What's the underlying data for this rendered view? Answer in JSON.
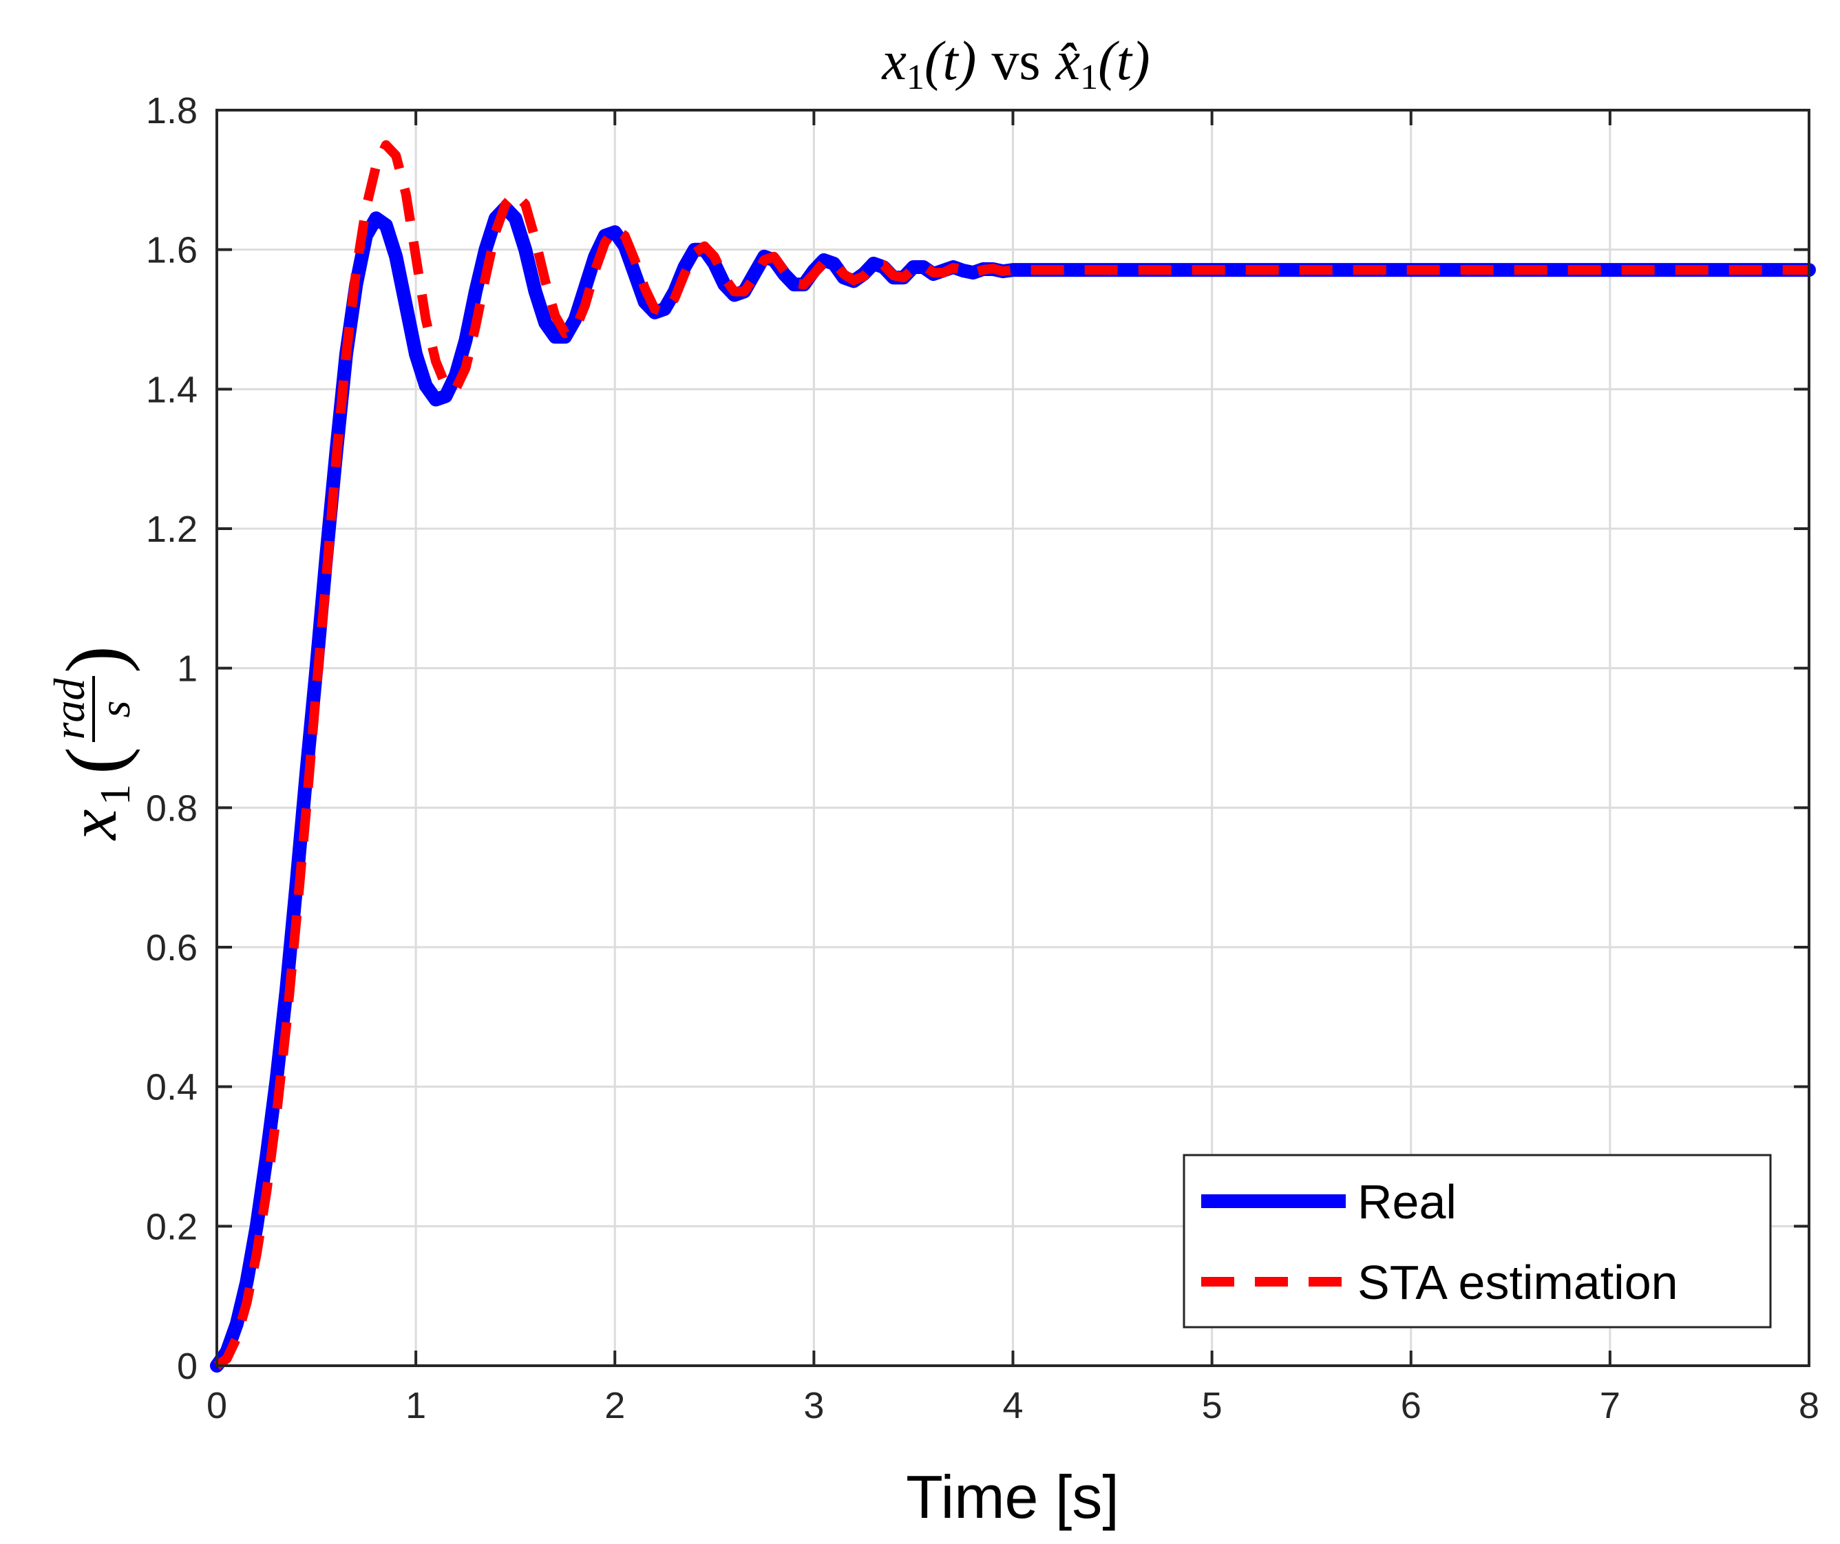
{
  "colors": {
    "real": "#0000ff",
    "estimate": "#ff0000",
    "axis": "#262626",
    "grid": "#dcdcdc"
  },
  "chart_data": {
    "type": "line",
    "title": "x1(t) vs x̂1(t)",
    "title_parts": {
      "a": "x",
      "a_sub": "1",
      "a_arg": "(t)",
      "vs": "vs",
      "b": "x̂",
      "b_sub": "1",
      "b_arg": "(t)"
    },
    "xlabel": "Time [s]",
    "ylabel": "x1(rad/s)",
    "ylabel_parts": {
      "var": "x",
      "sub": "1",
      "num": "rad",
      "den": "s"
    },
    "xlim": [
      0,
      8
    ],
    "ylim": [
      0,
      1.8
    ],
    "xticks": [
      0,
      1,
      2,
      3,
      4,
      5,
      6,
      7,
      8
    ],
    "yticks": [
      0,
      0.2,
      0.4,
      0.6,
      0.8,
      1,
      1.2,
      1.4,
      1.6,
      1.8
    ],
    "xtick_labels": [
      "0",
      "1",
      "2",
      "3",
      "4",
      "5",
      "6",
      "7",
      "8"
    ],
    "ytick_labels": [
      "0",
      "0.2",
      "0.4",
      "0.6",
      "0.8",
      "1",
      "1.2",
      "1.4",
      "1.6",
      "1.8"
    ],
    "grid": true,
    "legend_position": "bottom-right",
    "series": [
      {
        "name": "Real",
        "style": "solid",
        "points": [
          [
            0,
            0
          ],
          [
            0.05,
            0.02
          ],
          [
            0.1,
            0.06
          ],
          [
            0.15,
            0.12
          ],
          [
            0.2,
            0.2
          ],
          [
            0.25,
            0.3
          ],
          [
            0.3,
            0.41
          ],
          [
            0.35,
            0.54
          ],
          [
            0.4,
            0.69
          ],
          [
            0.45,
            0.85
          ],
          [
            0.5,
            1.0
          ],
          [
            0.55,
            1.16
          ],
          [
            0.6,
            1.31
          ],
          [
            0.65,
            1.45
          ],
          [
            0.7,
            1.55
          ],
          [
            0.75,
            1.62
          ],
          [
            0.8,
            1.645
          ],
          [
            0.85,
            1.635
          ],
          [
            0.9,
            1.59
          ],
          [
            0.95,
            1.52
          ],
          [
            1.0,
            1.45
          ],
          [
            1.05,
            1.405
          ],
          [
            1.1,
            1.385
          ],
          [
            1.15,
            1.39
          ],
          [
            1.2,
            1.42
          ],
          [
            1.25,
            1.47
          ],
          [
            1.3,
            1.54
          ],
          [
            1.35,
            1.6
          ],
          [
            1.4,
            1.645
          ],
          [
            1.45,
            1.66
          ],
          [
            1.5,
            1.645
          ],
          [
            1.55,
            1.6
          ],
          [
            1.6,
            1.54
          ],
          [
            1.65,
            1.495
          ],
          [
            1.7,
            1.475
          ],
          [
            1.75,
            1.475
          ],
          [
            1.8,
            1.5
          ],
          [
            1.85,
            1.545
          ],
          [
            1.9,
            1.59
          ],
          [
            1.95,
            1.62
          ],
          [
            2.0,
            1.625
          ],
          [
            2.05,
            1.605
          ],
          [
            2.1,
            1.565
          ],
          [
            2.15,
            1.525
          ],
          [
            2.2,
            1.51
          ],
          [
            2.25,
            1.515
          ],
          [
            2.3,
            1.54
          ],
          [
            2.35,
            1.575
          ],
          [
            2.4,
            1.6
          ],
          [
            2.45,
            1.6
          ],
          [
            2.5,
            1.58
          ],
          [
            2.55,
            1.55
          ],
          [
            2.6,
            1.535
          ],
          [
            2.65,
            1.54
          ],
          [
            2.7,
            1.565
          ],
          [
            2.75,
            1.59
          ],
          [
            2.8,
            1.585
          ],
          [
            2.85,
            1.565
          ],
          [
            2.9,
            1.55
          ],
          [
            2.95,
            1.55
          ],
          [
            3.0,
            1.57
          ],
          [
            3.05,
            1.585
          ],
          [
            3.1,
            1.58
          ],
          [
            3.15,
            1.56
          ],
          [
            3.2,
            1.555
          ],
          [
            3.25,
            1.565
          ],
          [
            3.3,
            1.58
          ],
          [
            3.35,
            1.575
          ],
          [
            3.4,
            1.56
          ],
          [
            3.45,
            1.56
          ],
          [
            3.5,
            1.575
          ],
          [
            3.55,
            1.575
          ],
          [
            3.6,
            1.565
          ],
          [
            3.65,
            1.57
          ],
          [
            3.7,
            1.575
          ],
          [
            3.75,
            1.57
          ],
          [
            3.8,
            1.567
          ],
          [
            3.85,
            1.572
          ],
          [
            3.9,
            1.572
          ],
          [
            3.95,
            1.569
          ],
          [
            4.0,
            1.571
          ],
          [
            4.3,
            1.571
          ],
          [
            5.0,
            1.571
          ],
          [
            6.0,
            1.571
          ],
          [
            7.0,
            1.571
          ],
          [
            8.0,
            1.571
          ]
        ]
      },
      {
        "name": "STA estimation",
        "style": "dashed",
        "points": [
          [
            0,
            0
          ],
          [
            0.05,
            0.01
          ],
          [
            0.1,
            0.04
          ],
          [
            0.15,
            0.09
          ],
          [
            0.2,
            0.16
          ],
          [
            0.25,
            0.25
          ],
          [
            0.3,
            0.36
          ],
          [
            0.35,
            0.49
          ],
          [
            0.4,
            0.64
          ],
          [
            0.45,
            0.8
          ],
          [
            0.5,
            0.97
          ],
          [
            0.55,
            1.13
          ],
          [
            0.6,
            1.3
          ],
          [
            0.65,
            1.45
          ],
          [
            0.7,
            1.57
          ],
          [
            0.75,
            1.66
          ],
          [
            0.8,
            1.72
          ],
          [
            0.85,
            1.75
          ],
          [
            0.9,
            1.735
          ],
          [
            0.95,
            1.68
          ],
          [
            1.0,
            1.59
          ],
          [
            1.05,
            1.5
          ],
          [
            1.1,
            1.44
          ],
          [
            1.15,
            1.405
          ],
          [
            1.2,
            1.4
          ],
          [
            1.25,
            1.43
          ],
          [
            1.3,
            1.49
          ],
          [
            1.35,
            1.56
          ],
          [
            1.4,
            1.625
          ],
          [
            1.45,
            1.665
          ],
          [
            1.5,
            1.68
          ],
          [
            1.55,
            1.665
          ],
          [
            1.6,
            1.615
          ],
          [
            1.65,
            1.555
          ],
          [
            1.7,
            1.505
          ],
          [
            1.75,
            1.48
          ],
          [
            1.8,
            1.485
          ],
          [
            1.85,
            1.52
          ],
          [
            1.9,
            1.57
          ],
          [
            1.95,
            1.61
          ],
          [
            2.0,
            1.63
          ],
          [
            2.05,
            1.62
          ],
          [
            2.1,
            1.585
          ],
          [
            2.15,
            1.545
          ],
          [
            2.2,
            1.515
          ],
          [
            2.25,
            1.51
          ],
          [
            2.3,
            1.53
          ],
          [
            2.35,
            1.565
          ],
          [
            2.4,
            1.595
          ],
          [
            2.45,
            1.605
          ],
          [
            2.5,
            1.59
          ],
          [
            2.55,
            1.56
          ],
          [
            2.6,
            1.54
          ],
          [
            2.65,
            1.54
          ],
          [
            2.7,
            1.56
          ],
          [
            2.75,
            1.585
          ],
          [
            2.8,
            1.59
          ],
          [
            2.85,
            1.57
          ],
          [
            2.9,
            1.552
          ],
          [
            2.95,
            1.55
          ],
          [
            3.0,
            1.565
          ],
          [
            3.05,
            1.582
          ],
          [
            3.1,
            1.582
          ],
          [
            3.15,
            1.565
          ],
          [
            3.2,
            1.556
          ],
          [
            3.25,
            1.562
          ],
          [
            3.3,
            1.577
          ],
          [
            3.35,
            1.578
          ],
          [
            3.4,
            1.563
          ],
          [
            3.45,
            1.56
          ],
          [
            3.5,
            1.573
          ],
          [
            3.55,
            1.577
          ],
          [
            3.6,
            1.567
          ],
          [
            3.65,
            1.567
          ],
          [
            3.7,
            1.574
          ],
          [
            3.75,
            1.572
          ],
          [
            3.8,
            1.567
          ],
          [
            3.85,
            1.571
          ],
          [
            3.9,
            1.573
          ],
          [
            3.95,
            1.569
          ],
          [
            4.0,
            1.571
          ],
          [
            4.3,
            1.571
          ],
          [
            5.0,
            1.571
          ],
          [
            6.0,
            1.571
          ],
          [
            7.0,
            1.571
          ],
          [
            8.0,
            1.571
          ]
        ]
      }
    ]
  }
}
